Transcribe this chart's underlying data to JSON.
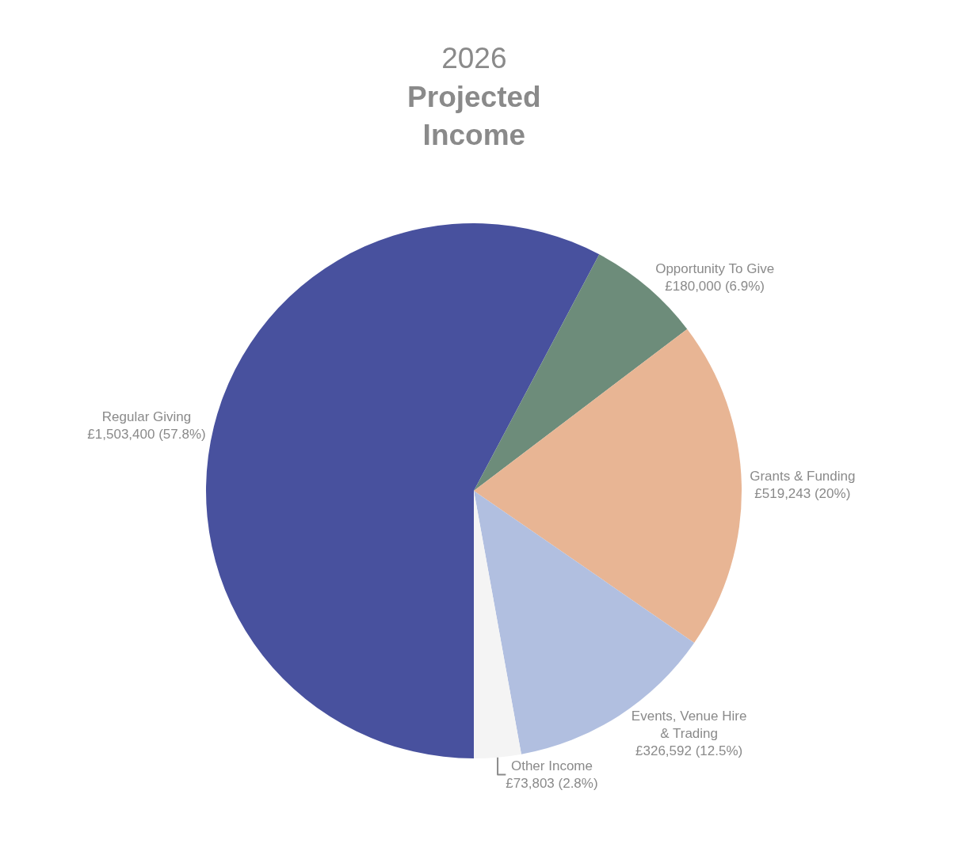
{
  "chart_data": {
    "type": "pie",
    "title": "2026 Projected Income",
    "categories": [
      "Regular Giving",
      "Opportunity To Give",
      "Grants & Funding",
      "Events, Venue Hire & Trading",
      "Other Income"
    ],
    "values": [
      1503400,
      180000,
      519243,
      326592,
      73803
    ],
    "value_labels": [
      "£1,503,400 (57.8%)",
      "£180,000 (6.9%)",
      "£519,243 (20%)",
      "£326,592 (12.5%)",
      "£73,803 (2.8%)"
    ],
    "colors": [
      "#48519e",
      "#6d8c7a",
      "#e8b594",
      "#b1bfe0",
      "#f4f4f4"
    ],
    "legend": false
  }
}
